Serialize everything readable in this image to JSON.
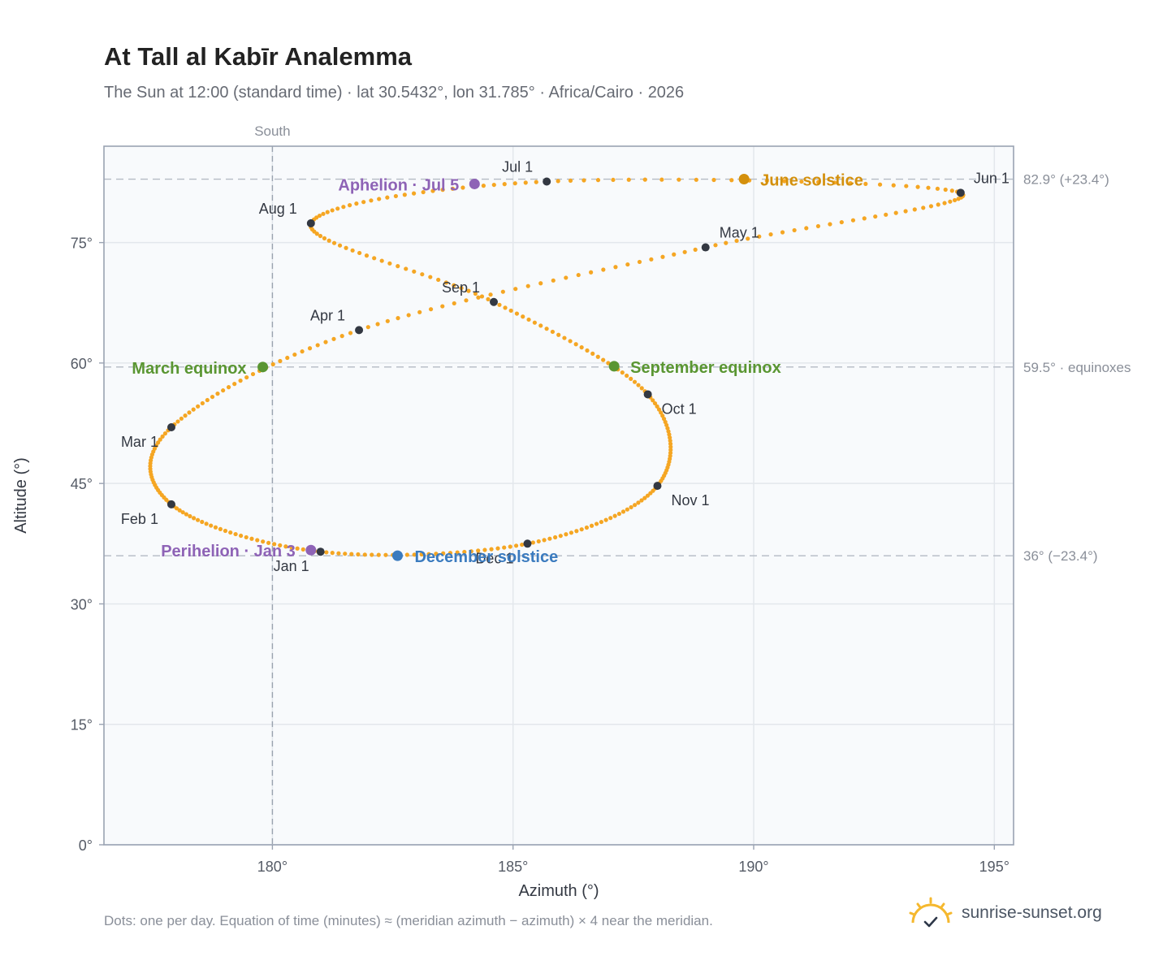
{
  "title": "At Tall al Kabīr Analemma",
  "subtitle": "The Sun at 12:00 (standard time) · lat 30.5432°, lon 31.785° · Africa/Cairo · 2026",
  "footer": "Dots: one per day. Equation of time (minutes) ≈ (meridian azimuth − azimuth) × 4 near the meridian.",
  "brand": "sunrise-sunset.org",
  "chart_data": {
    "type": "scatter",
    "xlabel": "Azimuth (°)",
    "ylabel": "Altitude (°)",
    "xlim": [
      176.5,
      195.4
    ],
    "ylim": [
      0,
      87
    ],
    "x_ticks": [
      180,
      185,
      190,
      195
    ],
    "x_tick_labels": [
      "180°",
      "185°",
      "190°",
      "195°"
    ],
    "y_ticks": [
      0,
      15,
      30,
      45,
      60,
      75
    ],
    "y_tick_labels": [
      "0°",
      "15°",
      "30°",
      "45°",
      "60°",
      "75°"
    ],
    "grid": true,
    "south_line": {
      "azimuth": 180,
      "label": "South"
    },
    "reference_lines": [
      {
        "altitude": 82.9,
        "label": "82.9° (+23.4°)"
      },
      {
        "altitude": 59.5,
        "label": "59.5° · equinoxes"
      },
      {
        "altitude": 36.0,
        "label": "36° (−23.4°)"
      }
    ],
    "path_color": "#f5a623",
    "month_color": "#333842",
    "months": [
      {
        "label": "Jan 1",
        "az": 181.0,
        "alt": 36.5
      },
      {
        "label": "Feb 1",
        "az": 177.9,
        "alt": 42.4
      },
      {
        "label": "Mar 1",
        "az": 177.9,
        "alt": 52.0
      },
      {
        "label": "Apr 1",
        "az": 181.8,
        "alt": 64.1
      },
      {
        "label": "May 1",
        "az": 189.0,
        "alt": 74.4
      },
      {
        "label": "Jun 1",
        "az": 194.3,
        "alt": 81.2
      },
      {
        "label": "Jul 1",
        "az": 185.7,
        "alt": 82.6
      },
      {
        "label": "Aug 1",
        "az": 180.8,
        "alt": 77.4
      },
      {
        "label": "Sep 1",
        "az": 184.6,
        "alt": 67.6
      },
      {
        "label": "Oct 1",
        "az": 187.8,
        "alt": 56.1
      },
      {
        "label": "Nov 1",
        "az": 188.0,
        "alt": 44.7
      },
      {
        "label": "Dec 1",
        "az": 185.3,
        "alt": 37.5
      }
    ],
    "events": [
      {
        "label": "June solstice",
        "az": 189.8,
        "alt": 82.9,
        "color": "#d4900c"
      },
      {
        "label": "September equinox",
        "az": 187.1,
        "alt": 59.6,
        "color": "#5a9632"
      },
      {
        "label": "March equinox",
        "az": 179.8,
        "alt": 59.5,
        "color": "#5a9632"
      },
      {
        "label": "December solstice",
        "az": 182.6,
        "alt": 36.0,
        "color": "#3b7bbf"
      },
      {
        "label": "Aphelion · Jul 5",
        "az": 184.2,
        "alt": 82.3,
        "color": "#8e63b6"
      },
      {
        "label": "Perihelion · Jan 3",
        "az": 180.8,
        "alt": 36.7,
        "color": "#8e63b6"
      }
    ]
  }
}
